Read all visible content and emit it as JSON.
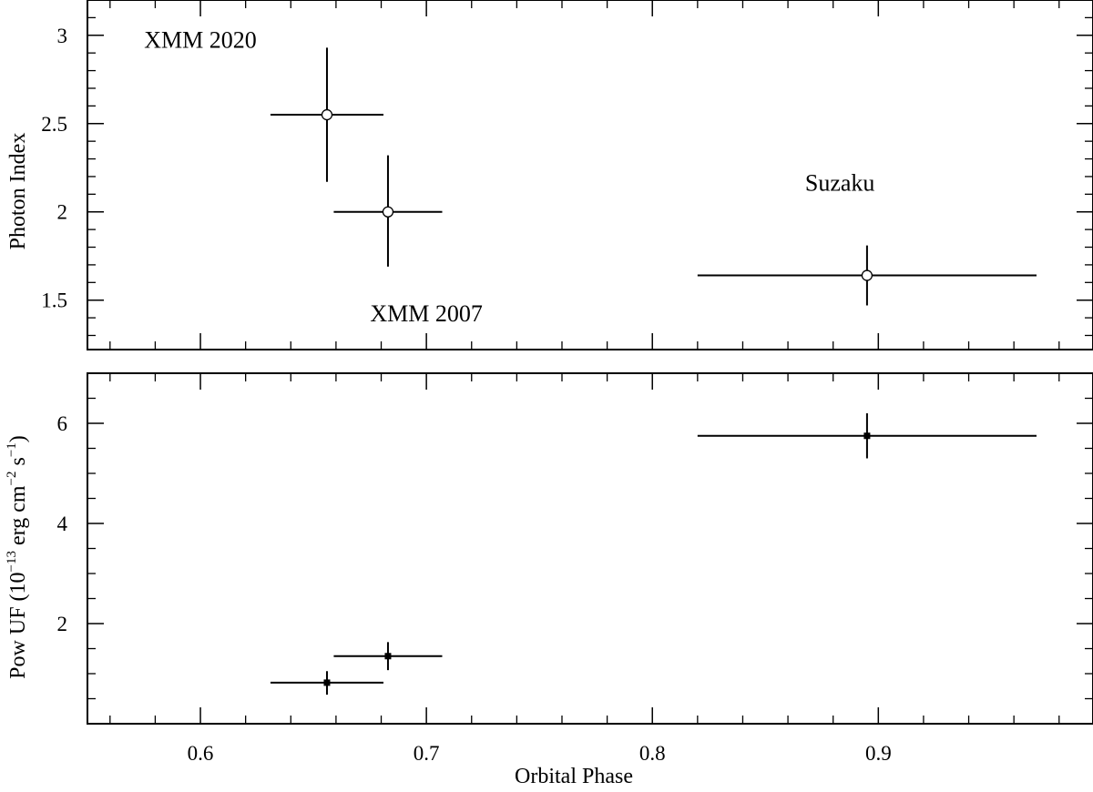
{
  "chart_data": [
    {
      "type": "scatter",
      "panel": "top",
      "title": "",
      "xlabel": "",
      "ylabel": "Photon Index",
      "xlim": [
        0.55,
        0.995
      ],
      "ylim": [
        1.22,
        3.2
      ],
      "xticks": [
        0.6,
        0.7,
        0.8,
        0.9
      ],
      "xtick_labels_shown": false,
      "yticks": [
        1.5,
        2,
        2.5,
        3
      ],
      "ytick_labels": [
        "1.5",
        "2",
        "2.5",
        "3"
      ],
      "marker": "open-circle",
      "points": [
        {
          "x": 0.656,
          "y": 2.55,
          "xlo": 0.631,
          "xhi": 0.681,
          "ylo": 2.17,
          "yhi": 2.93
        },
        {
          "x": 0.683,
          "y": 2.0,
          "xlo": 0.659,
          "xhi": 0.707,
          "ylo": 1.69,
          "yhi": 2.32
        },
        {
          "x": 0.895,
          "y": 1.64,
          "xlo": 0.82,
          "xhi": 0.97,
          "ylo": 1.47,
          "yhi": 1.81
        }
      ],
      "annotations": [
        {
          "text": "XMM 2020",
          "x": 0.6,
          "y": 2.93
        },
        {
          "text": "XMM 2007",
          "x": 0.7,
          "y": 1.38
        },
        {
          "text": "Suzaku",
          "x": 0.883,
          "y": 2.12
        }
      ]
    },
    {
      "type": "scatter",
      "panel": "bottom",
      "title": "",
      "xlabel": "Orbital Phase",
      "ylabel_parts": [
        "Pow UF (10",
        "−13",
        " erg cm",
        "−2",
        " s",
        "−1",
        ")"
      ],
      "xlim": [
        0.55,
        0.995
      ],
      "ylim": [
        0,
        7
      ],
      "xticks": [
        0.6,
        0.7,
        0.8,
        0.9
      ],
      "xtick_labels": [
        "0.6",
        "0.7",
        "0.8",
        "0.9"
      ],
      "yticks": [
        2,
        4,
        6
      ],
      "ytick_labels": [
        "2",
        "4",
        "6"
      ],
      "marker": "filled-square",
      "points": [
        {
          "x": 0.656,
          "y": 0.82,
          "xlo": 0.631,
          "xhi": 0.681,
          "ylo": 0.58,
          "yhi": 1.05
        },
        {
          "x": 0.683,
          "y": 1.35,
          "xlo": 0.659,
          "xhi": 0.707,
          "ylo": 1.07,
          "yhi": 1.63
        },
        {
          "x": 0.895,
          "y": 5.75,
          "xlo": 0.82,
          "xhi": 0.97,
          "ylo": 5.3,
          "yhi": 6.2
        }
      ]
    }
  ]
}
